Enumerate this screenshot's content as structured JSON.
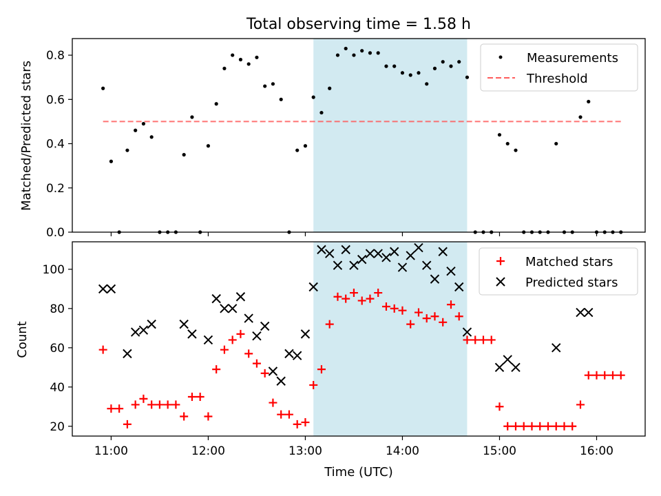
{
  "chart_data": [
    {
      "type": "scatter",
      "title": "Total observing time = 1.58 h",
      "xlabel": "",
      "ylabel": "Matched/Predicted stars",
      "xlim": [
        "10:36",
        "16:30"
      ],
      "ylim": [
        0,
        0.875
      ],
      "x_ticks": [
        "11:00",
        "12:00",
        "13:00",
        "14:00",
        "15:00",
        "16:00"
      ],
      "y_ticks": [
        "0.0",
        "0.2",
        "0.4",
        "0.6",
        "0.8"
      ],
      "legend_position": "top-right",
      "legend": [
        "Measurements",
        "Threshold"
      ],
      "observing_window": {
        "start": "13:05",
        "end": "14:40",
        "color": "#add8e6"
      },
      "threshold": {
        "name": "Threshold",
        "value": 0.5,
        "x_start": "10:55",
        "x_end": "16:15",
        "color": "#ff5b5b"
      },
      "series": [
        {
          "name": "Measurements",
          "color": "#000000",
          "x": [
            "10:55",
            "11:00",
            "11:05",
            "11:10",
            "11:15",
            "11:20",
            "11:25",
            "11:30",
            "11:35",
            "11:40",
            "11:45",
            "11:50",
            "11:55",
            "12:00",
            "12:05",
            "12:10",
            "12:15",
            "12:20",
            "12:25",
            "12:30",
            "12:35",
            "12:40",
            "12:45",
            "12:50",
            "12:55",
            "13:00",
            "13:05",
            "13:10",
            "13:15",
            "13:20",
            "13:25",
            "13:30",
            "13:35",
            "13:40",
            "13:45",
            "13:50",
            "13:55",
            "14:00",
            "14:05",
            "14:10",
            "14:15",
            "14:20",
            "14:25",
            "14:30",
            "14:35",
            "14:40",
            "14:45",
            "14:50",
            "14:55",
            "15:00",
            "15:05",
            "15:10",
            "15:15",
            "15:20",
            "15:25",
            "15:30",
            "15:35",
            "15:40",
            "15:45",
            "15:50",
            "15:55",
            "16:00",
            "16:05",
            "16:10",
            "16:15"
          ],
          "y": [
            0.65,
            0.32,
            0.0,
            0.37,
            0.46,
            0.49,
            0.43,
            0.0,
            0.0,
            0.0,
            0.35,
            0.52,
            0.0,
            0.39,
            0.58,
            0.74,
            0.8,
            0.78,
            0.76,
            0.79,
            0.66,
            0.67,
            0.6,
            0.0,
            0.37,
            0.39,
            0.61,
            0.54,
            0.65,
            0.8,
            0.83,
            0.8,
            0.82,
            0.81,
            0.81,
            0.75,
            0.75,
            0.72,
            0.71,
            0.72,
            0.67,
            0.74,
            0.77,
            0.75,
            0.77,
            0.7,
            0.0,
            0.0,
            0.0,
            0.44,
            0.4,
            0.37,
            0.0,
            0.0,
            0.0,
            0.0,
            0.4,
            0.0,
            0.0,
            0.52,
            0.59,
            0.0,
            0.0,
            0.0,
            0.0
          ]
        }
      ]
    },
    {
      "type": "scatter",
      "title": "",
      "xlabel": "Time (UTC)",
      "ylabel": "Count",
      "xlim": [
        "10:36",
        "16:30"
      ],
      "ylim": [
        15,
        114
      ],
      "x_ticks": [
        "11:00",
        "12:00",
        "13:00",
        "14:00",
        "15:00",
        "16:00"
      ],
      "y_ticks": [
        "20",
        "40",
        "60",
        "80",
        "100"
      ],
      "legend_position": "top-right",
      "legend": [
        "Matched stars",
        "Predicted stars"
      ],
      "observing_window": {
        "start": "13:05",
        "end": "14:40",
        "color": "#add8e6"
      },
      "series": [
        {
          "name": "Matched stars",
          "marker": "plus",
          "color": "#ff0000",
          "x": [
            "10:55",
            "11:00",
            "11:05",
            "11:10",
            "11:15",
            "11:20",
            "11:25",
            "11:30",
            "11:35",
            "11:40",
            "11:45",
            "11:50",
            "11:55",
            "12:00",
            "12:05",
            "12:10",
            "12:15",
            "12:20",
            "12:25",
            "12:30",
            "12:35",
            "12:40",
            "12:45",
            "12:50",
            "12:55",
            "13:00",
            "13:05",
            "13:10",
            "13:15",
            "13:20",
            "13:25",
            "13:30",
            "13:35",
            "13:40",
            "13:45",
            "13:50",
            "13:55",
            "14:00",
            "14:05",
            "14:10",
            "14:15",
            "14:20",
            "14:25",
            "14:30",
            "14:35",
            "14:40",
            "14:45",
            "14:50",
            "14:55",
            "15:00",
            "15:05",
            "15:10",
            "15:15",
            "15:20",
            "15:25",
            "15:30",
            "15:35",
            "15:40",
            "15:45",
            "15:50",
            "15:55",
            "16:00",
            "16:05",
            "16:10",
            "16:15"
          ],
          "y": [
            59,
            29,
            29,
            21,
            31,
            34,
            31,
            31,
            31,
            31,
            25,
            35,
            35,
            25,
            49,
            59,
            64,
            67,
            57,
            52,
            47,
            32,
            26,
            26,
            21,
            22,
            41,
            49,
            72,
            86,
            85,
            88,
            84,
            85,
            88,
            81,
            80,
            79,
            72,
            78,
            75,
            76,
            73,
            82,
            76,
            64,
            64,
            64,
            64,
            30,
            20,
            20,
            20,
            20,
            20,
            20,
            20,
            20,
            20,
            31,
            46,
            46,
            46,
            46,
            46
          ]
        },
        {
          "name": "Predicted stars",
          "marker": "x",
          "color": "#000000",
          "x": [
            "10:55",
            "11:00",
            "11:10",
            "11:15",
            "11:20",
            "11:25",
            "11:45",
            "11:50",
            "12:00",
            "12:05",
            "12:10",
            "12:15",
            "12:20",
            "12:25",
            "12:30",
            "12:35",
            "12:40",
            "12:45",
            "12:50",
            "12:55",
            "13:00",
            "13:05",
            "13:10",
            "13:15",
            "13:20",
            "13:25",
            "13:30",
            "13:35",
            "13:40",
            "13:45",
            "13:50",
            "13:55",
            "14:00",
            "14:05",
            "14:10",
            "14:15",
            "14:20",
            "14:25",
            "14:30",
            "14:35",
            "14:40",
            "15:00",
            "15:05",
            "15:10",
            "15:35",
            "15:50",
            "15:55"
          ],
          "y": [
            90,
            90,
            57,
            68,
            69,
            72,
            72,
            67,
            64,
            85,
            80,
            80,
            86,
            75,
            66,
            71,
            48,
            43,
            57,
            56,
            67,
            91,
            110,
            108,
            102,
            110,
            102,
            105,
            108,
            108,
            106,
            109,
            101,
            107,
            111,
            102,
            95,
            109,
            99,
            91,
            68,
            50,
            54,
            50,
            60,
            78,
            78
          ]
        }
      ]
    }
  ]
}
